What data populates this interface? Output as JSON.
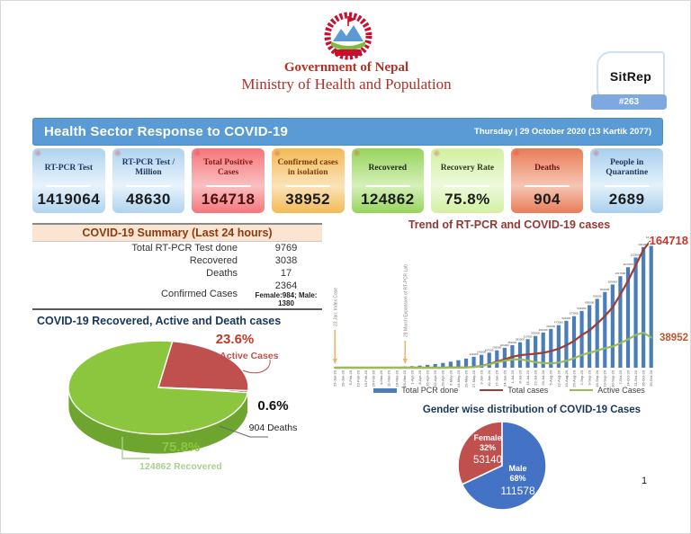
{
  "header": {
    "gov_line1": "Government of Nepal",
    "gov_line2": "Ministry of Health and Population",
    "sitrep_label": "SitRep",
    "sitrep_number": "#263"
  },
  "banner": {
    "title": "Health Sector Response to COVID-19",
    "date": "Thursday | 29 October 2020 (13 Kartik 2077)"
  },
  "stat_cards": [
    {
      "label": "RT-PCR Test",
      "value": "1419064",
      "bg": "#afd3ef",
      "bg_light": "#e8f3fb",
      "label_color": "#1f3864",
      "value_color": "#1b1b1b"
    },
    {
      "label": "RT-PCR Test / Million",
      "value": "48630",
      "bg": "#afd3ef",
      "bg_light": "#e8f3fb",
      "label_color": "#1f3864",
      "value_color": "#1b1b1b"
    },
    {
      "label": "Total Positive Cases",
      "value": "164718",
      "bg": "#f4767b",
      "bg_light": "#f9bfc1",
      "label_color": "#8b1a10",
      "value_color": "#4a100e"
    },
    {
      "label": "Confirmed cases in isolation",
      "value": "38952",
      "bg": "#f3ba55",
      "bg_light": "#fae3b8",
      "label_color": "#7f3b08",
      "value_color": "#1b1b1b"
    },
    {
      "label": "Recovered",
      "value": "124862",
      "bg": "#97d45b",
      "bg_light": "#d6f0ba",
      "label_color": "#1c2b12",
      "value_color": "#1b1b1b"
    },
    {
      "label": "Recovery Rate",
      "value": "75.8%",
      "bg": "#d2f0a0",
      "bg_light": "#eef9dc",
      "label_color": "#2b3a1d",
      "value_color": "#1b1b1b"
    },
    {
      "label": "Deaths",
      "value": "904",
      "bg": "#e97c57",
      "bg_light": "#f5c6b5",
      "label_color": "#701010",
      "value_color": "#1b1b1b"
    },
    {
      "label": "People in Quarantine",
      "value": "2689",
      "bg": "#a9cfed",
      "bg_light": "#e4f1fa",
      "label_color": "#1f3864",
      "value_color": "#1b1b1b"
    }
  ],
  "summary": {
    "title": "COVID-19 Summary (Last 24 hours)",
    "rows": [
      {
        "label": "Total RT-PCR Test done",
        "value": "9769",
        "subvalue": ""
      },
      {
        "label": "Recovered",
        "value": "3038",
        "subvalue": ""
      },
      {
        "label": "Deaths",
        "value": "17",
        "subvalue": ""
      },
      {
        "label": "Confirmed Cases",
        "value": "2364",
        "subvalue": "Female:984; Male: 1380"
      }
    ]
  },
  "recovery_pie": {
    "title": "COVID-19 Recovered, Active and Death cases",
    "labels": {
      "active_pct": "23.6%",
      "active_text": "38952 Active Cases",
      "death_pct": "0.6%",
      "death_text": "904 Deaths",
      "recovered_pct": "75.8%",
      "recovered_text": "124862 Recovered"
    },
    "colors": {
      "active": "#c0504d",
      "death": "#5f2120",
      "recovered": "#8cc63f",
      "recovered_light": "#a9d18e"
    }
  },
  "trend": {
    "title": "Trend of RT-PCR and COVID-19 cases",
    "end_label_total": "164718",
    "end_label_active": "38952",
    "annotation1": "23 Jan: Index Case",
    "annotation2": "29 March Expansion of RT-PCR Lab"
  },
  "gender_pie": {
    "title": "Gender wise distribution of COVID-19 Cases",
    "female_name": "Female",
    "female_pct": "32%",
    "female_value": "53140",
    "male_name": "Male",
    "male_pct": "68%",
    "male_value": "111578",
    "colors": {
      "female": "#c0504d",
      "male": "#4472c4"
    }
  },
  "page_number": "1",
  "chart_data": [
    {
      "type": "pie",
      "title": "COVID-19 Recovered, Active and Death cases",
      "style": "3d",
      "slices": [
        {
          "label": "Active Cases",
          "pct": 23.6,
          "value": 38952,
          "start_deg": -81,
          "end_deg": 4,
          "color": "#c0504d",
          "side": "#8e3b38"
        },
        {
          "label": "Deaths",
          "pct": 0.6,
          "value": 904,
          "start_deg": 4,
          "end_deg": 6.2,
          "color": "#5f2120",
          "side": "#431717"
        },
        {
          "label": "Recovered",
          "pct": 75.8,
          "value": 124862,
          "start_deg": 6.2,
          "end_deg": 279,
          "color": "#8cc63f",
          "side": "#6ea52f"
        }
      ]
    },
    {
      "type": "bar",
      "title": "Trend of RT-PCR and COVID-19 cases",
      "categories": [
        "23-Jan-20",
        "29-Jan-20",
        "5-Feb-20",
        "12-Feb-20",
        "19-Feb-20",
        "26-Feb-20",
        "4-Mar-20",
        "11-Mar-20",
        "18-Mar-20",
        "25-Mar-20",
        "1-Apr-20",
        "8-Apr-20",
        "15-Apr-20",
        "22-Apr-20",
        "29-Apr-20",
        "6-May-20",
        "13-May-20",
        "20-May-20",
        "27-May-20",
        "3-Jun-20",
        "10-Jun-20",
        "17-Jun-20",
        "24-Jun-20",
        "1-Jul-20",
        "8-Jul-20",
        "15-Jul-20",
        "22-Jul-20",
        "29-Jul-20",
        "5-Aug-20",
        "12-Aug-20",
        "19-Aug-20",
        "26-Aug-20",
        "2-Sep-20",
        "9-Sep-20",
        "16-Sep-20",
        "23-Sep-20",
        "30-Sep-20",
        "7-Oct-20",
        "14-Oct-20",
        "21-Oct-20",
        "26-Oct-20",
        "29-Oct-20"
      ],
      "series": [
        {
          "name": "Total PCR done",
          "kind": "bar",
          "color": "#4a7ebb",
          "axis_max": 1419064,
          "values": [
            1000,
            2000,
            2500,
            3000,
            3500,
            4500,
            6000,
            8000,
            10000,
            13000,
            17000,
            23000,
            31000,
            41000,
            53000,
            67000,
            83000,
            101000,
            121000,
            143000,
            167000,
            193000,
            221000,
            251000,
            283000,
            317000,
            353000,
            391000,
            431000,
            473000,
            521000,
            573000,
            631000,
            695000,
            765000,
            841000,
            925000,
            1017000,
            1117000,
            1225000,
            1341000,
            1419064
          ]
        },
        {
          "name": "Total  cases",
          "kind": "line",
          "color": "#9e3d33",
          "axis_max": 164718,
          "values": [
            1,
            1,
            1,
            1,
            1,
            1,
            1,
            1,
            2,
            3,
            5,
            9,
            16,
            45,
            54,
            100,
            250,
            400,
            886,
            2300,
            4614,
            7848,
            10728,
            14046,
            16168,
            17177,
            17994,
            19273,
            21390,
            24432,
            28938,
            34418,
            42124,
            48138,
            56788,
            66632,
            77817,
            94253,
            111802,
            132246,
            152192,
            164718
          ]
        },
        {
          "name": "Active Cases",
          "kind": "line",
          "color": "#9bbb59",
          "axis_max": 164718,
          "values": [
            0,
            0,
            0,
            0,
            0,
            0,
            1,
            1,
            2,
            3,
            5,
            9,
            16,
            43,
            50,
            95,
            240,
            380,
            840,
            2200,
            4300,
            7000,
            9100,
            10600,
            10800,
            9200,
            7100,
            5900,
            5600,
            6600,
            8900,
            12100,
            16600,
            19100,
            22200,
            25200,
            27300,
            31500,
            36500,
            42200,
            45200,
            38952
          ]
        }
      ],
      "annotations": [
        "23 Jan: Index Case",
        "29 March Expansion of RT-PCR Lab"
      ],
      "legend_position": "bottom"
    },
    {
      "type": "pie",
      "title": "Gender wise distribution of COVID-19 Cases",
      "style": "flat",
      "slices": [
        {
          "label": "Female",
          "pct": 32,
          "value": 53140,
          "start_deg": -205.2,
          "end_deg": -90,
          "color": "#c0504d"
        },
        {
          "label": "Male",
          "pct": 68,
          "value": 111578,
          "start_deg": -90,
          "end_deg": 154.8,
          "color": "#4472c4"
        }
      ]
    }
  ]
}
